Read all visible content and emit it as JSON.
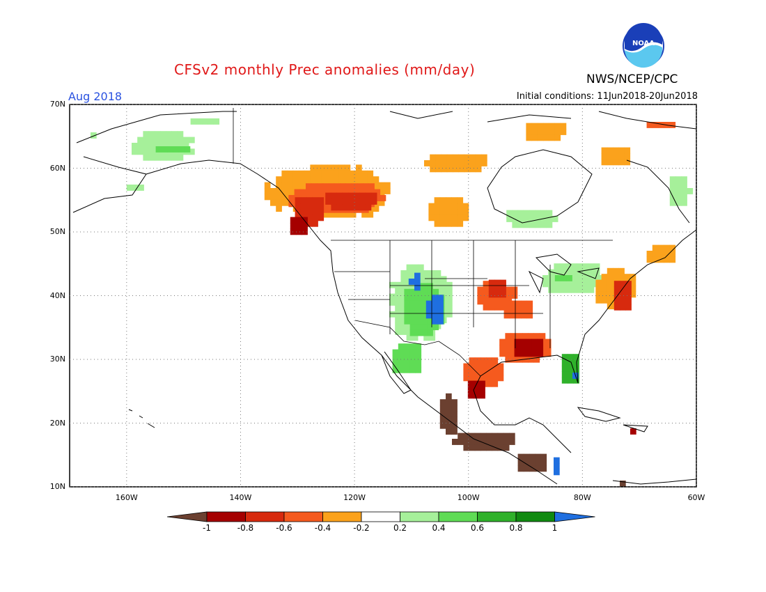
{
  "title": "CFSv2 monthly Prec anomalies (mm/day)",
  "agency": "NWS/NCEP/CPC",
  "logo": {
    "text": "NOAA",
    "colors": [
      "#1a3fb8",
      "#5bc8ef"
    ]
  },
  "month": "Aug 2018",
  "initial_conditions": "Initial conditions: 11Jun2018-20Jun2018",
  "lat_labels": [
    "70N",
    "60N",
    "50N",
    "40N",
    "30N",
    "20N",
    "10N"
  ],
  "lon_labels": [
    "160W",
    "140W",
    "120W",
    "100W",
    "80W",
    "60W"
  ],
  "colorbar": {
    "ticks": [
      "-1",
      "-0.8",
      "-0.6",
      "-0.4",
      "-0.2",
      "0.2",
      "0.4",
      "0.6",
      "0.8",
      "1"
    ],
    "colors": [
      "#6b4030",
      "#a50000",
      "#d72a0e",
      "#f55a1e",
      "#fba21c",
      "#ffffff",
      "#a6f09a",
      "#5fdc55",
      "#2fb12a",
      "#108a10",
      "#1f6fe0"
    ]
  },
  "chart_data": {
    "type": "heatmap",
    "title": "CFSv2 monthly Prec anomalies (mm/day)",
    "period": "Aug 2018",
    "units": "mm/day",
    "lat_range": [
      10,
      70
    ],
    "lon_range": [
      -170,
      -60
    ],
    "anomaly_regions": [
      {
        "region": "Pacific Northwest / British Columbia / Alberta",
        "anomaly": "-0.4 to -1"
      },
      {
        "region": "Yukon / Northwest Territories / Hudson Bay",
        "anomaly": "-0.2 to -0.6"
      },
      {
        "region": "Alaska interior",
        "anomaly": "0.2 to 0.6"
      },
      {
        "region": "Southwest US / Four Corners",
        "anomaly": "0.2 to 1"
      },
      {
        "region": "Great Lakes / Ohio Valley",
        "anomaly": "0.2 to 0.6"
      },
      {
        "region": "Central Plains / Missouri",
        "anomaly": "-0.2 to -0.8"
      },
      {
        "region": "Lower Mississippi Valley / Gulf Coast",
        "anomaly": "-0.4 to -1"
      },
      {
        "region": "Texas coast / eastern Mexico",
        "anomaly": "-0.4 to below -1"
      },
      {
        "region": "Southern Mexico / Central America Pacific coast",
        "anomaly": "below -1"
      },
      {
        "region": "Florida",
        "anomaly": "0.4 to above 1"
      },
      {
        "region": "Mid-Atlantic / New England",
        "anomaly": "-0.2 to -0.8"
      },
      {
        "region": "Greenland / Labrador coast",
        "anomaly": "0.2 to 0.6"
      }
    ]
  }
}
